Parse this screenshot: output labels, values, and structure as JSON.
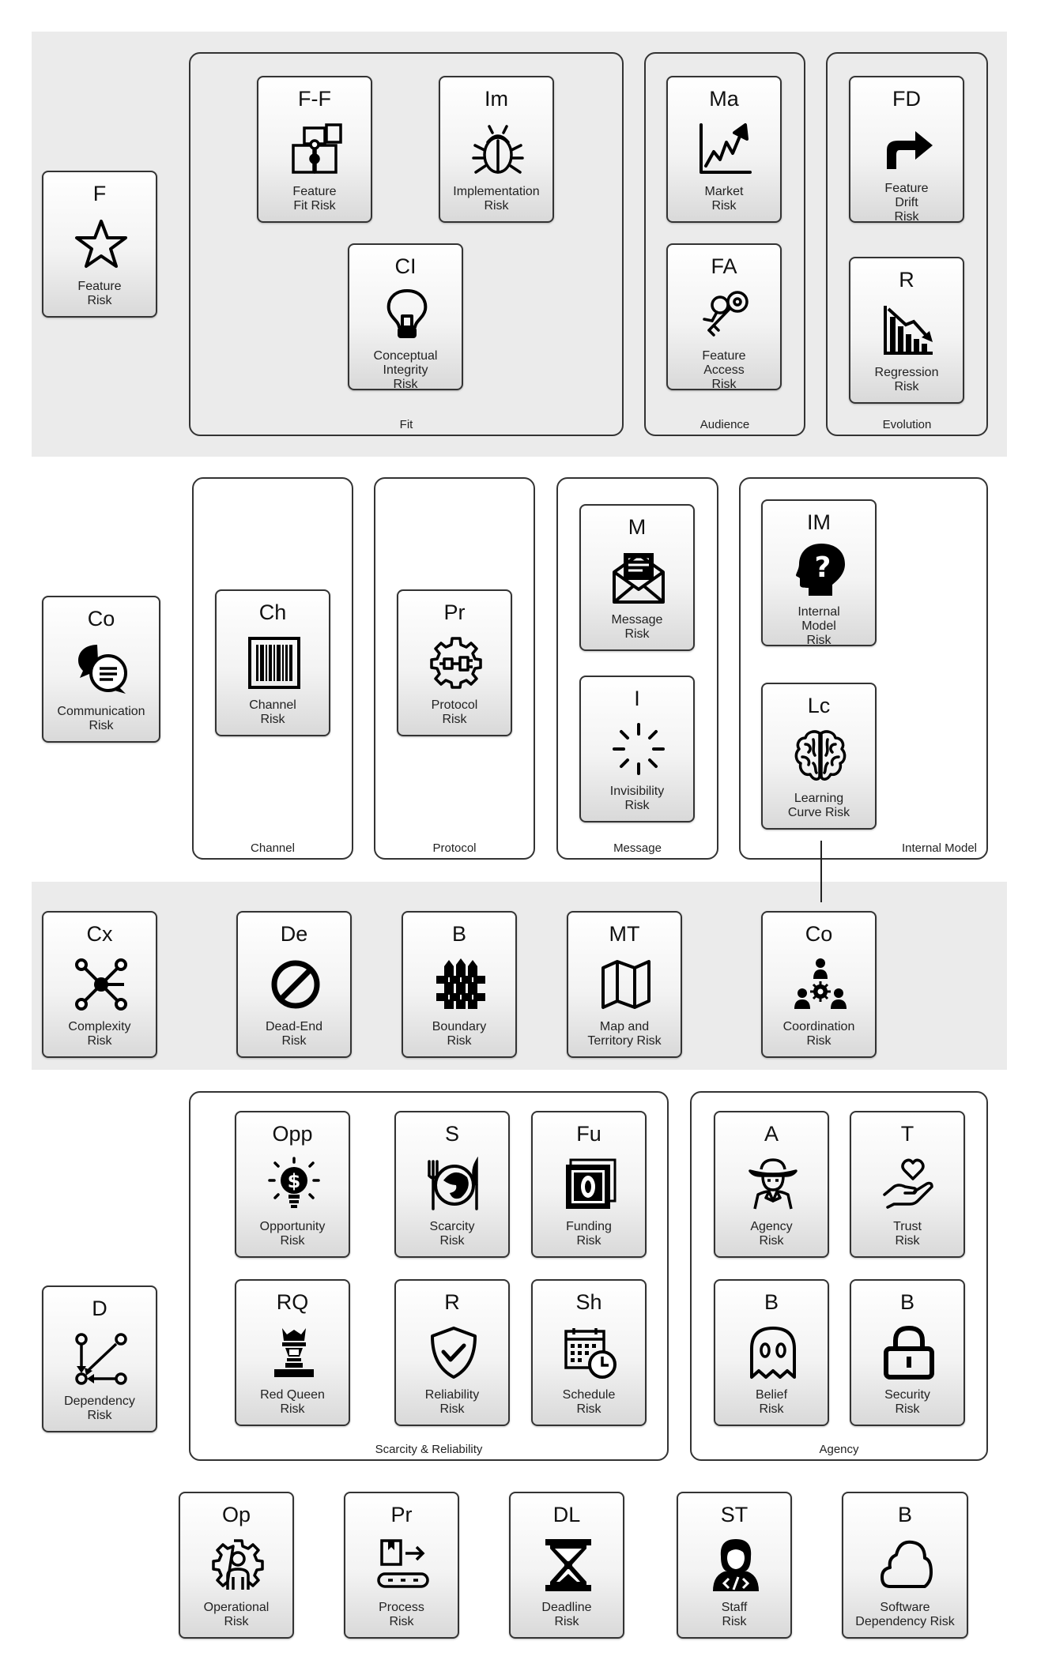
{
  "groups": {
    "fit": "Fit",
    "audience": "Audience",
    "evolution": "Evolution",
    "channel": "Channel",
    "protocol": "Protocol",
    "message": "Message",
    "internal_model": "Internal Model",
    "scarcity": "Scarcity & Reliability",
    "agency": "Agency"
  },
  "cards": {
    "feature": {
      "abbr": "F",
      "title": "Feature\nRisk",
      "icon": "star-icon"
    },
    "feature_fit": {
      "abbr": "F-F",
      "title": "Feature\nFit Risk",
      "icon": "puzzle-icon"
    },
    "implementation": {
      "abbr": "Im",
      "title": "Implementation\nRisk",
      "icon": "bug-icon"
    },
    "conceptual_integrity": {
      "abbr": "CI",
      "title": "Conceptual\nIntegrity\nRisk",
      "icon": "lightbulb-icon"
    },
    "market": {
      "abbr": "Ma",
      "title": "Market\nRisk",
      "icon": "chart-up-icon"
    },
    "feature_access": {
      "abbr": "FA",
      "title": "Feature\nAccess\nRisk",
      "icon": "keys-icon"
    },
    "feature_drift": {
      "abbr": "FD",
      "title": "Feature\nDrift\nRisk",
      "icon": "turn-arrow-icon"
    },
    "regression": {
      "abbr": "R",
      "title": "Regression\nRisk",
      "icon": "chart-down-icon"
    },
    "communication": {
      "abbr": "Co",
      "title": "Communication\nRisk",
      "icon": "chat-bubbles-icon"
    },
    "channel": {
      "abbr": "Ch",
      "title": "Channel\nRisk",
      "icon": "barcode-icon"
    },
    "protocol": {
      "abbr": "Pr",
      "title": "Protocol\nRisk",
      "icon": "plug-gear-icon"
    },
    "message": {
      "abbr": "M",
      "title": "Message\nRisk",
      "icon": "envelope-icon"
    },
    "invisibility": {
      "abbr": "I",
      "title": "Invisibility\nRisk",
      "icon": "burst-icon"
    },
    "internal_model": {
      "abbr": "IM",
      "title": "Internal\nModel\nRisk",
      "icon": "head-question-icon"
    },
    "learning_curve": {
      "abbr": "Lc",
      "title": "Learning\nCurve Risk",
      "icon": "brain-icon"
    },
    "complexity": {
      "abbr": "Cx",
      "title": "Complexity\nRisk",
      "icon": "network-icon"
    },
    "dead_end": {
      "abbr": "De",
      "title": "Dead-End\nRisk",
      "icon": "no-entry-icon"
    },
    "boundary": {
      "abbr": "B",
      "title": "Boundary\nRisk",
      "icon": "fence-icon"
    },
    "map_territory": {
      "abbr": "MT",
      "title": "Map and\nTerritory Risk",
      "icon": "map-icon"
    },
    "coordination": {
      "abbr": "Co",
      "title": "Coordination\nRisk",
      "icon": "team-icon"
    },
    "opportunity": {
      "abbr": "Opp",
      "title": "Opportunity\nRisk",
      "icon": "dollar-bulb-icon"
    },
    "scarcity": {
      "abbr": "S",
      "title": "Scarcity\nRisk",
      "icon": "plate-cutlery-icon"
    },
    "funding": {
      "abbr": "Fu",
      "title": "Funding\nRisk",
      "icon": "banknote-icon"
    },
    "agency": {
      "abbr": "A",
      "title": "Agency\nRisk",
      "icon": "spy-icon"
    },
    "trust": {
      "abbr": "T",
      "title": "Trust\nRisk",
      "icon": "heart-hand-icon"
    },
    "dependency": {
      "abbr": "D",
      "title": "Dependency\nRisk",
      "icon": "dependency-graph-icon"
    },
    "red_queen": {
      "abbr": "RQ",
      "title": "Red Queen\nRisk",
      "icon": "chess-queen-icon"
    },
    "reliability": {
      "abbr": "R",
      "title": "Reliability\nRisk",
      "icon": "shield-check-icon"
    },
    "schedule": {
      "abbr": "Sh",
      "title": "Schedule\nRisk",
      "icon": "calendar-clock-icon"
    },
    "belief": {
      "abbr": "B",
      "title": "Belief\nRisk",
      "icon": "ghost-icon"
    },
    "security": {
      "abbr": "B",
      "title": "Security\nRisk",
      "icon": "padlock-icon"
    },
    "operational": {
      "abbr": "Op",
      "title": "Operational\nRisk",
      "icon": "gear-person-icon"
    },
    "process": {
      "abbr": "Pr",
      "title": "Process\nRisk",
      "icon": "conveyor-icon"
    },
    "deadline": {
      "abbr": "DL",
      "title": "Deadline\nRisk",
      "icon": "hourglass-icon"
    },
    "staff": {
      "abbr": "ST",
      "title": "Staff\nRisk",
      "icon": "developer-icon"
    },
    "software_dependency": {
      "abbr": "B",
      "title": "Software\nDependency Risk",
      "icon": "cloud-icon"
    }
  }
}
